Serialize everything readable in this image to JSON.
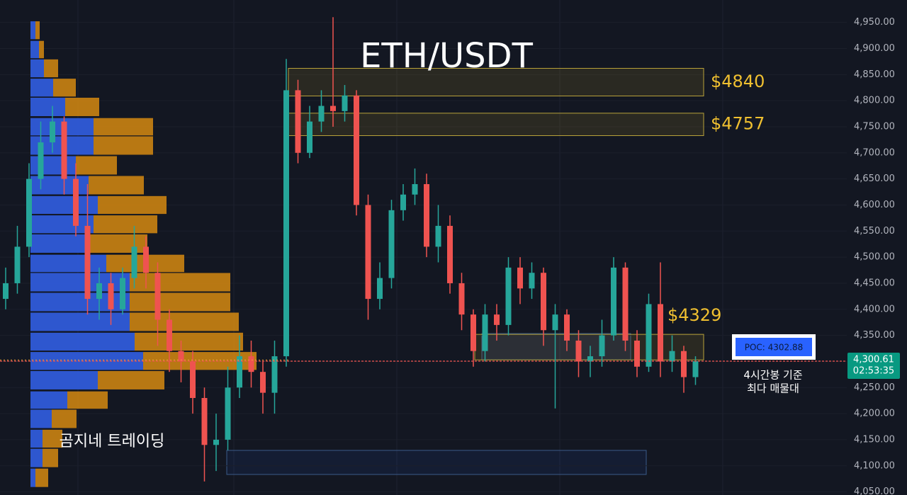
{
  "chart_data": {
    "type": "candlestick",
    "title": "ETH/USDT",
    "watermark": "곰지네 트레이딩",
    "ylim": [
      4044,
      4993
    ],
    "yticks": [
      {
        "value": 4050,
        "label": "4,050.00"
      },
      {
        "value": 4100,
        "label": "4,100.00"
      },
      {
        "value": 4150,
        "label": "4,150.00"
      },
      {
        "value": 4200,
        "label": "4,200.00"
      },
      {
        "value": 4250,
        "label": "4,250.00"
      },
      {
        "value": 4300,
        "label": "4,300.00"
      },
      {
        "value": 4350,
        "label": "4,350.00"
      },
      {
        "value": 4400,
        "label": "4,400.00"
      },
      {
        "value": 4450,
        "label": "4,450.00"
      },
      {
        "value": 4500,
        "label": "4,500.00"
      },
      {
        "value": 4550,
        "label": "4,550.00"
      },
      {
        "value": 4600,
        "label": "4,600.00"
      },
      {
        "value": 4650,
        "label": "4,650.00"
      },
      {
        "value": 4700,
        "label": "4,700.00"
      },
      {
        "value": 4750,
        "label": "4,750.00"
      },
      {
        "value": 4800,
        "label": "4,800.00"
      },
      {
        "value": 4850,
        "label": "4,850.00"
      },
      {
        "value": 4900,
        "label": "4,900.00"
      },
      {
        "value": 4950,
        "label": "4,950.00"
      }
    ],
    "grid": true,
    "up_color": "#26a69a",
    "down_color": "#ef5350",
    "ohlc": [
      [
        4420,
        4480,
        4400,
        4450
      ],
      [
        4450,
        4560,
        4430,
        4520
      ],
      [
        4520,
        4680,
        4500,
        4650
      ],
      [
        4650,
        4760,
        4630,
        4720
      ],
      [
        4720,
        4790,
        4700,
        4760
      ],
      [
        4760,
        4770,
        4620,
        4650
      ],
      [
        4650,
        4680,
        4540,
        4560
      ],
      [
        4560,
        4640,
        4390,
        4420
      ],
      [
        4420,
        4480,
        4380,
        4450
      ],
      [
        4450,
        4470,
        4370,
        4400
      ],
      [
        4400,
        4480,
        4390,
        4460
      ],
      [
        4460,
        4560,
        4440,
        4520
      ],
      [
        4520,
        4540,
        4440,
        4470
      ],
      [
        4470,
        4490,
        4330,
        4380
      ],
      [
        4380,
        4400,
        4280,
        4320
      ],
      [
        4320,
        4340,
        4260,
        4300
      ],
      [
        4300,
        4320,
        4200,
        4230
      ],
      [
        4230,
        4250,
        4070,
        4140
      ],
      [
        4140,
        4200,
        4090,
        4150
      ],
      [
        4150,
        4290,
        4130,
        4250
      ],
      [
        4250,
        4350,
        4230,
        4310
      ],
      [
        4310,
        4340,
        4250,
        4280
      ],
      [
        4280,
        4300,
        4200,
        4240
      ],
      [
        4240,
        4340,
        4200,
        4310
      ],
      [
        4310,
        4880,
        4290,
        4820
      ],
      [
        4820,
        4840,
        4680,
        4700
      ],
      [
        4700,
        4790,
        4690,
        4760
      ],
      [
        4760,
        4820,
        4740,
        4790
      ],
      [
        4790,
        4960,
        4750,
        4780
      ],
      [
        4780,
        4830,
        4760,
        4810
      ],
      [
        4810,
        4820,
        4580,
        4600
      ],
      [
        4600,
        4620,
        4380,
        4420
      ],
      [
        4420,
        4490,
        4400,
        4460
      ],
      [
        4460,
        4610,
        4440,
        4590
      ],
      [
        4590,
        4640,
        4570,
        4620
      ],
      [
        4620,
        4670,
        4600,
        4640
      ],
      [
        4640,
        4660,
        4500,
        4520
      ],
      [
        4520,
        4600,
        4490,
        4560
      ],
      [
        4560,
        4580,
        4430,
        4450
      ],
      [
        4450,
        4470,
        4360,
        4390
      ],
      [
        4390,
        4400,
        4290,
        4320
      ],
      [
        4320,
        4410,
        4300,
        4390
      ],
      [
        4390,
        4410,
        4340,
        4370
      ],
      [
        4370,
        4500,
        4350,
        4480
      ],
      [
        4480,
        4500,
        4410,
        4440
      ],
      [
        4440,
        4490,
        4420,
        4470
      ],
      [
        4470,
        4480,
        4330,
        4360
      ],
      [
        4360,
        4410,
        4210,
        4390
      ],
      [
        4390,
        4400,
        4320,
        4340
      ],
      [
        4340,
        4360,
        4270,
        4300
      ],
      [
        4300,
        4330,
        4270,
        4310
      ],
      [
        4310,
        4380,
        4290,
        4350
      ],
      [
        4350,
        4500,
        4340,
        4480
      ],
      [
        4480,
        4490,
        4320,
        4340
      ],
      [
        4340,
        4360,
        4270,
        4290
      ],
      [
        4290,
        4430,
        4280,
        4410
      ],
      [
        4410,
        4490,
        4270,
        4300
      ],
      [
        4300,
        4350,
        4280,
        4320
      ],
      [
        4320,
        4330,
        4240,
        4270
      ],
      [
        4270,
        4310,
        4255,
        4300.61
      ]
    ],
    "volume_profile": {
      "buy_color": "#2f5bd9",
      "sell_color": "#d68910",
      "levels": [
        4935,
        4898,
        4862,
        4825,
        4788,
        4750,
        4714,
        4676,
        4638,
        4600,
        4563,
        4526,
        4488,
        4452,
        4414,
        4376,
        4338,
        4301,
        4264,
        4226,
        4190,
        4152,
        4115,
        4077
      ],
      "buy": [
        7,
        12,
        19,
        32,
        49,
        89,
        89,
        64,
        82,
        95,
        89,
        77,
        107,
        140,
        140,
        140,
        147,
        159,
        95,
        52,
        30,
        17,
        17,
        7
      ],
      "sell": [
        6,
        7,
        20,
        32,
        48,
        84,
        84,
        58,
        78,
        97,
        90,
        88,
        110,
        142,
        142,
        154,
        153,
        160,
        94,
        57,
        35,
        28,
        22,
        18
      ]
    },
    "zones": [
      {
        "label": "$4840",
        "high": 4862,
        "low": 4809
      },
      {
        "label": "$4757",
        "high": 4776,
        "low": 4733
      },
      {
        "label": "$4329",
        "high": 4352,
        "low": 4303
      }
    ],
    "last_price": {
      "value": 4300.61,
      "label": "4,300.61"
    },
    "countdown": "02:53:35",
    "poc": {
      "value": 4302.88,
      "label": "POC: 4302.88"
    },
    "poc_note": [
      "4시간봉 기준",
      "최다 매물대"
    ]
  }
}
